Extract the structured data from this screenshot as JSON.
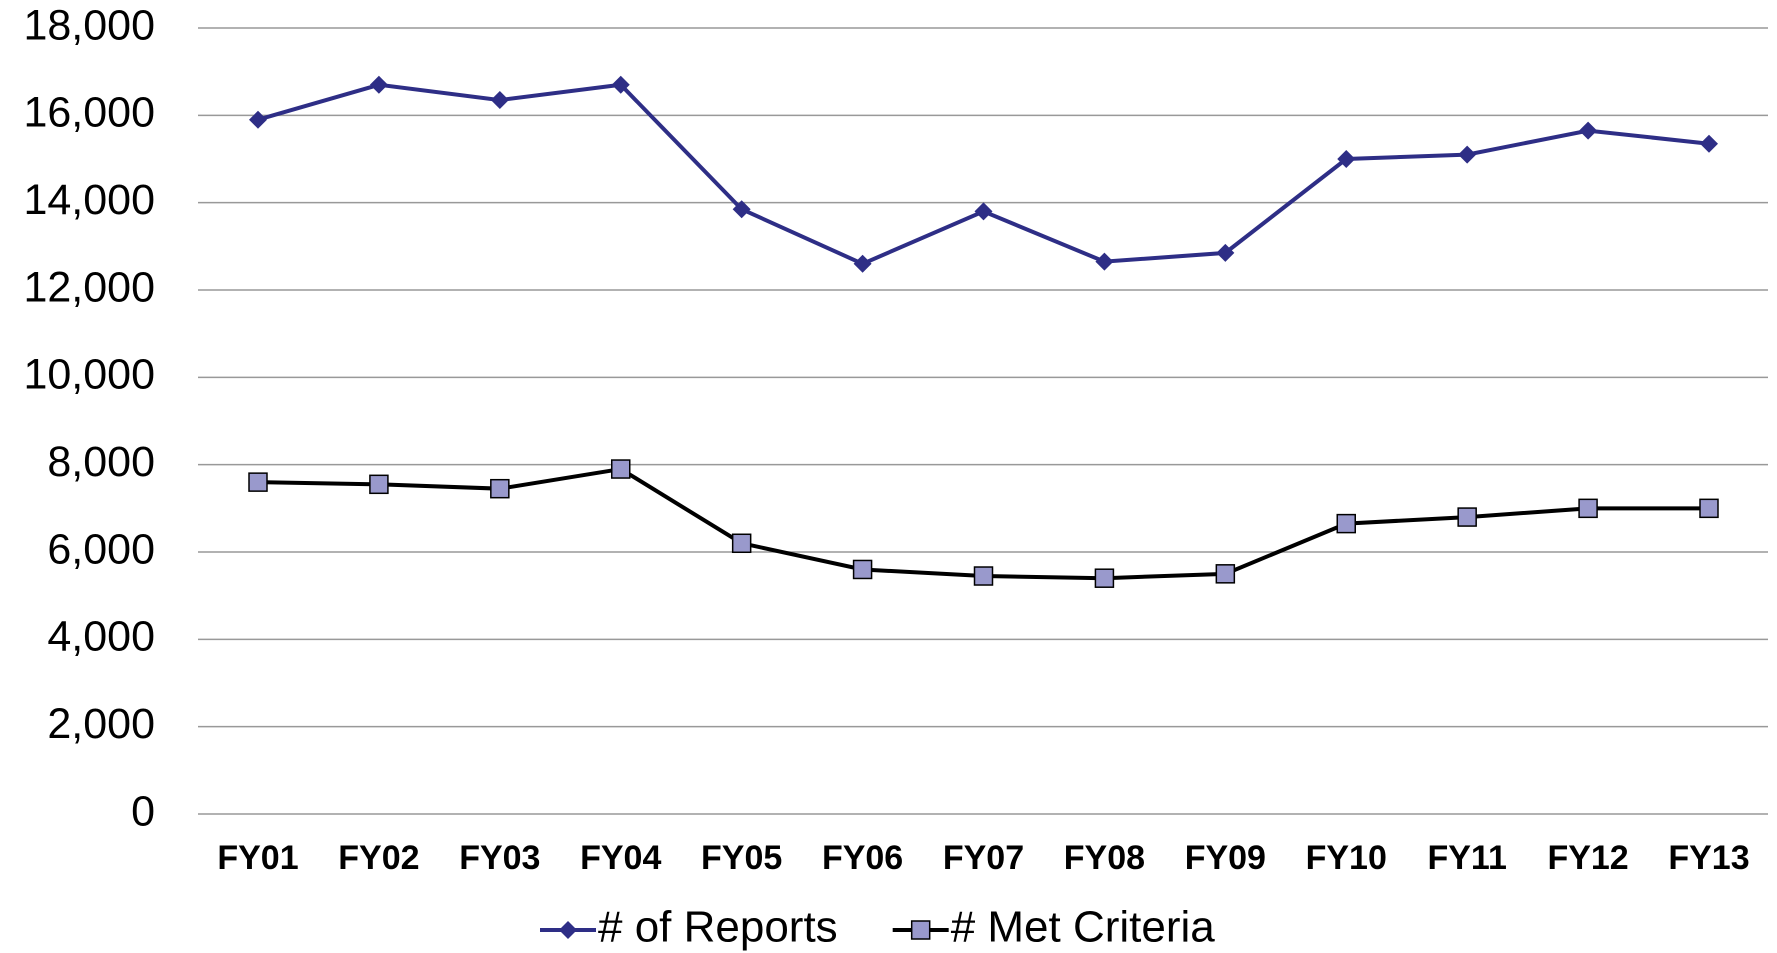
{
  "chart_data": {
    "type": "line",
    "categories": [
      "FY01",
      "FY02",
      "FY03",
      "FY04",
      "FY05",
      "FY06",
      "FY07",
      "FY08",
      "FY09",
      "FY10",
      "FY11",
      "FY12",
      "FY13"
    ],
    "series": [
      {
        "name": "# of Reports",
        "color": "#2e2e86",
        "marker": "diamond",
        "values": [
          15900,
          16700,
          16350,
          16700,
          13850,
          12600,
          13800,
          12650,
          12850,
          15000,
          15100,
          15650,
          15350
        ]
      },
      {
        "name": "# Met Criteria",
        "color": "#000000",
        "marker_color": "#9999cc",
        "marker": "square",
        "values": [
          7600,
          7550,
          7450,
          7900,
          6200,
          5600,
          5450,
          5400,
          5500,
          6650,
          6800,
          7000,
          7000
        ]
      }
    ],
    "ylim": [
      0,
      18000
    ],
    "yticks": [
      0,
      {
        "value": 2000,
        "label": "2,000"
      },
      {
        "value": 4000,
        "label": "4,000"
      },
      {
        "value": 6000,
        "label": "6,000"
      },
      {
        "value": 8000,
        "label": "8,000"
      },
      {
        "value": 10000,
        "label": "10,000"
      },
      {
        "value": 12000,
        "label": "12,000"
      },
      {
        "value": 14000,
        "label": "14,000"
      },
      {
        "value": 16000,
        "label": "16,000"
      },
      {
        "value": 18000,
        "label": "18,000"
      }
    ],
    "grid": true,
    "legend": "bottom"
  }
}
